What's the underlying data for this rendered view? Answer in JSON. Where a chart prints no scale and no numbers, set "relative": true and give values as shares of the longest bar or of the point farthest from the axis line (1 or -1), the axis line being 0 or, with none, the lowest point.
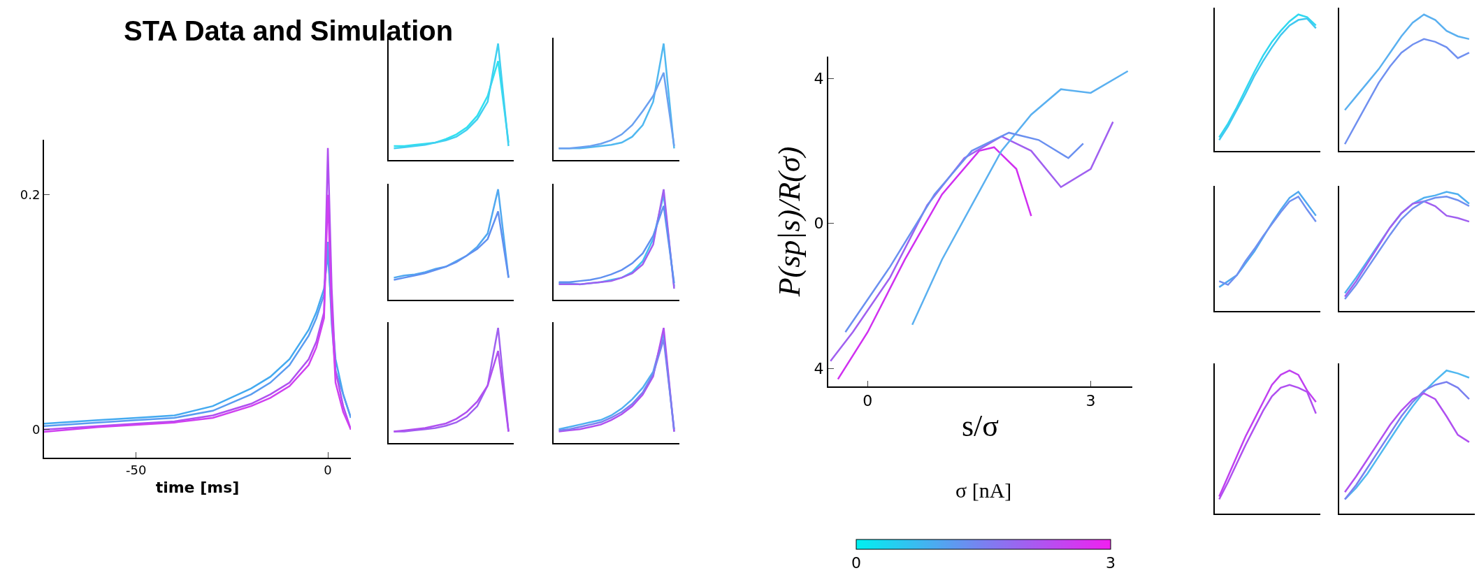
{
  "chart_data": [
    {
      "type": "line",
      "title": "STA Data and Simulation",
      "xlabel": "time [ms]",
      "x": [
        -74,
        -60,
        -50,
        -40,
        -30,
        -20,
        -15,
        -10,
        -5,
        -3,
        -1,
        0,
        1,
        2,
        4,
        6
      ],
      "xlim": [
        -74,
        6
      ],
      "xticks": [
        -50,
        0
      ],
      "ylim": [
        -0.024,
        0.247
      ],
      "yticks": [
        0,
        0.2
      ],
      "series": [
        {
          "color": "#44aaf0",
          "values": [
            0.005,
            0.008,
            0.01,
            0.012,
            0.02,
            0.035,
            0.045,
            0.06,
            0.085,
            0.1,
            0.12,
            0.15,
            0.1,
            0.06,
            0.03,
            0.01
          ]
        },
        {
          "color": "#5a9cf0",
          "values": [
            0.003,
            0.006,
            0.008,
            0.01,
            0.016,
            0.03,
            0.04,
            0.055,
            0.08,
            0.095,
            0.115,
            0.16,
            0.09,
            0.05,
            0.03,
            0.01
          ]
        },
        {
          "color": "#b050f0",
          "values": [
            0.0,
            0.003,
            0.005,
            0.007,
            0.012,
            0.022,
            0.03,
            0.04,
            0.06,
            0.075,
            0.1,
            0.24,
            0.12,
            0.05,
            0.02,
            0.0
          ]
        },
        {
          "color": "#d040f0",
          "values": [
            -0.002,
            0.002,
            0.004,
            0.006,
            0.01,
            0.02,
            0.027,
            0.037,
            0.055,
            0.07,
            0.095,
            0.2,
            0.1,
            0.04,
            0.015,
            0.0
          ]
        }
      ]
    },
    {
      "type": "line",
      "relative": true,
      "categories": [
        null,
        null,
        null,
        null,
        null,
        null,
        null,
        null,
        null,
        null,
        null,
        null
      ],
      "series": [
        {
          "color": "#30e0f0",
          "values": [
            0.12,
            0.12,
            0.13,
            0.14,
            0.15,
            0.18,
            0.22,
            0.28,
            0.38,
            0.55,
            0.85,
            0.15
          ]
        },
        {
          "color": "#40d0f0",
          "values": [
            0.1,
            0.11,
            0.12,
            0.13,
            0.15,
            0.17,
            0.2,
            0.26,
            0.35,
            0.5,
            1.0,
            0.12
          ]
        }
      ]
    },
    {
      "type": "line",
      "relative": true,
      "categories": [
        null,
        null,
        null,
        null,
        null,
        null,
        null,
        null,
        null,
        null,
        null,
        null
      ],
      "series": [
        {
          "color": "#50b8f0",
          "values": [
            0.1,
            0.1,
            0.1,
            0.11,
            0.12,
            0.13,
            0.15,
            0.2,
            0.3,
            0.5,
            1.0,
            0.1
          ]
        },
        {
          "color": "#6aa0f0",
          "values": [
            0.1,
            0.1,
            0.11,
            0.12,
            0.14,
            0.17,
            0.22,
            0.3,
            0.42,
            0.55,
            0.75,
            0.12
          ]
        }
      ]
    },
    {
      "type": "line",
      "relative": true,
      "categories": [
        null,
        null,
        null,
        null,
        null,
        null,
        null,
        null,
        null,
        null,
        null,
        null
      ],
      "series": [
        {
          "color": "#50a8f0",
          "values": [
            0.2,
            0.22,
            0.23,
            0.25,
            0.28,
            0.3,
            0.35,
            0.4,
            0.48,
            0.6,
            1.0,
            0.2
          ]
        },
        {
          "color": "#6090f0",
          "values": [
            0.18,
            0.2,
            0.22,
            0.24,
            0.27,
            0.3,
            0.34,
            0.4,
            0.46,
            0.55,
            0.8,
            0.2
          ]
        }
      ]
    },
    {
      "type": "line",
      "relative": true,
      "categories": [
        null,
        null,
        null,
        null,
        null,
        null,
        null,
        null,
        null,
        null,
        null,
        null
      ],
      "series": [
        {
          "color": "#40c0f0",
          "values": [
            0.15,
            0.15,
            0.14,
            0.15,
            0.16,
            0.18,
            0.2,
            0.25,
            0.35,
            0.55,
            0.95,
            0.12
          ]
        },
        {
          "color": "#a060f0",
          "values": [
            0.14,
            0.14,
            0.14,
            0.15,
            0.16,
            0.17,
            0.2,
            0.24,
            0.32,
            0.5,
            1.0,
            0.1
          ]
        },
        {
          "color": "#6090f0",
          "values": [
            0.16,
            0.16,
            0.17,
            0.18,
            0.2,
            0.23,
            0.27,
            0.33,
            0.42,
            0.58,
            0.85,
            0.15
          ]
        }
      ]
    },
    {
      "type": "line",
      "relative": true,
      "categories": [
        null,
        null,
        null,
        null,
        null,
        null,
        null,
        null,
        null,
        null,
        null,
        null
      ],
      "series": [
        {
          "color": "#a060f0",
          "values": [
            0.1,
            0.1,
            0.11,
            0.12,
            0.13,
            0.15,
            0.18,
            0.23,
            0.32,
            0.5,
            1.0,
            0.1
          ]
        },
        {
          "color": "#b050f0",
          "values": [
            0.1,
            0.11,
            0.12,
            0.13,
            0.15,
            0.17,
            0.21,
            0.27,
            0.36,
            0.5,
            0.8,
            0.1
          ]
        }
      ]
    },
    {
      "type": "line",
      "relative": true,
      "categories": [
        null,
        null,
        null,
        null,
        null,
        null,
        null,
        null,
        null,
        null,
        null,
        null
      ],
      "series": [
        {
          "color": "#50b0f0",
          "values": [
            0.12,
            0.14,
            0.16,
            0.18,
            0.2,
            0.24,
            0.3,
            0.38,
            0.48,
            0.62,
            0.95,
            0.1
          ]
        },
        {
          "color": "#b050f0",
          "values": [
            0.1,
            0.11,
            0.12,
            0.14,
            0.16,
            0.2,
            0.25,
            0.32,
            0.42,
            0.58,
            1.0,
            0.1
          ]
        },
        {
          "color": "#7a80f0",
          "values": [
            0.11,
            0.12,
            0.14,
            0.16,
            0.18,
            0.22,
            0.27,
            0.34,
            0.44,
            0.6,
            0.9,
            0.12
          ]
        }
      ]
    },
    {
      "type": "line",
      "xlabel": "s/σ",
      "ylabel": "P(sp|s)/R(σ)",
      "xlim": [
        -0.53,
        3.56
      ],
      "xticks": [
        0,
        3
      ],
      "ylim": [
        -4.5,
        4.6
      ],
      "yticks": [
        {
          "value": -4,
          "label": "4"
        },
        0,
        4
      ],
      "clabel": "σ [nA]",
      "clim": [
        0,
        3
      ],
      "cticks": [
        0,
        3
      ],
      "series": [
        {
          "color": "#d030f0",
          "x": [
            -0.4,
            0,
            0.5,
            1,
            1.5,
            1.7,
            2,
            2.2
          ],
          "values": [
            -4.3,
            -3,
            -1,
            0.8,
            2,
            2.1,
            1.5,
            0.2
          ]
        },
        {
          "color": "#a060f0",
          "x": [
            -0.5,
            -0.2,
            0.3,
            0.8,
            1.3,
            1.8,
            2.2,
            2.6,
            3,
            3.3
          ],
          "values": [
            -3.8,
            -3,
            -1.5,
            0.5,
            1.8,
            2.4,
            2,
            1,
            1.5,
            2.8
          ]
        },
        {
          "color": "#5ab0f0",
          "x": [
            0.6,
            1,
            1.4,
            1.8,
            2.2,
            2.6,
            3,
            3.5
          ],
          "values": [
            -2.8,
            -1,
            0.5,
            2,
            3,
            3.7,
            3.6,
            4.2
          ]
        },
        {
          "color": "#6a90f0",
          "x": [
            -0.3,
            0.3,
            0.9,
            1.4,
            1.9,
            2.3,
            2.7,
            2.9
          ],
          "values": [
            -3,
            -1.2,
            0.8,
            2,
            2.5,
            2.3,
            1.8,
            2.2
          ]
        }
      ]
    },
    {
      "type": "line",
      "relative": true,
      "categories": [
        null,
        null,
        null,
        null,
        null,
        null,
        null,
        null,
        null,
        null,
        null,
        null
      ],
      "series": [
        {
          "color": "#30d8f0",
          "values": [
            0.1,
            0.2,
            0.32,
            0.45,
            0.58,
            0.7,
            0.8,
            0.88,
            0.95,
            1.0,
            0.98,
            0.92
          ]
        },
        {
          "color": "#40c8f0",
          "values": [
            0.08,
            0.18,
            0.3,
            0.42,
            0.55,
            0.66,
            0.76,
            0.85,
            0.92,
            0.96,
            0.97,
            0.9
          ]
        }
      ]
    },
    {
      "type": "line",
      "relative": true,
      "categories": [
        null,
        null,
        null,
        null,
        null,
        null,
        null,
        null,
        null,
        null,
        null,
        null
      ],
      "series": [
        {
          "color": "#5ab0f0",
          "values": [
            0.3,
            0.4,
            0.5,
            0.6,
            0.72,
            0.84,
            0.94,
            1.0,
            0.96,
            0.88,
            0.84,
            0.82
          ]
        },
        {
          "color": "#7090f0",
          "values": [
            0.05,
            0.2,
            0.35,
            0.5,
            0.62,
            0.72,
            0.78,
            0.82,
            0.8,
            0.76,
            0.68,
            0.72
          ]
        }
      ]
    },
    {
      "type": "line",
      "relative": true,
      "categories": [
        null,
        null,
        null,
        null,
        null,
        null,
        null,
        null,
        null,
        null,
        null,
        null
      ],
      "series": [
        {
          "color": "#50a8f0",
          "values": [
            0.2,
            0.25,
            0.3,
            0.4,
            0.5,
            0.62,
            0.74,
            0.85,
            0.95,
            1.0,
            0.9,
            0.8
          ]
        },
        {
          "color": "#7090f0",
          "values": [
            0.25,
            0.22,
            0.3,
            0.42,
            0.52,
            0.63,
            0.73,
            0.83,
            0.92,
            0.96,
            0.85,
            0.75
          ]
        }
      ]
    },
    {
      "type": "line",
      "relative": true,
      "categories": [
        null,
        null,
        null,
        null,
        null,
        null,
        null,
        null,
        null,
        null,
        null,
        null
      ],
      "series": [
        {
          "color": "#50b0f0",
          "values": [
            0.15,
            0.28,
            0.42,
            0.56,
            0.7,
            0.82,
            0.9,
            0.95,
            0.97,
            1.0,
            0.98,
            0.9
          ]
        },
        {
          "color": "#a060f0",
          "values": [
            0.12,
            0.25,
            0.4,
            0.55,
            0.7,
            0.82,
            0.9,
            0.92,
            0.88,
            0.8,
            0.78,
            0.75
          ]
        },
        {
          "color": "#7090f0",
          "values": [
            0.1,
            0.22,
            0.36,
            0.5,
            0.64,
            0.77,
            0.86,
            0.92,
            0.95,
            0.96,
            0.93,
            0.88
          ]
        }
      ]
    },
    {
      "type": "line",
      "relative": true,
      "categories": [
        null,
        null,
        null,
        null,
        null,
        null,
        null,
        null,
        null,
        null,
        null,
        null
      ],
      "series": [
        {
          "color": "#b050f0",
          "values": [
            0.1,
            0.22,
            0.35,
            0.48,
            0.6,
            0.72,
            0.82,
            0.88,
            0.9,
            0.88,
            0.85,
            0.7
          ]
        },
        {
          "color": "#c040f0",
          "values": [
            0.12,
            0.26,
            0.4,
            0.54,
            0.66,
            0.78,
            0.9,
            0.97,
            1.0,
            0.97,
            0.86,
            0.78
          ]
        }
      ]
    },
    {
      "type": "line",
      "relative": true,
      "categories": [
        null,
        null,
        null,
        null,
        null,
        null,
        null,
        null,
        null,
        null,
        null,
        null
      ],
      "series": [
        {
          "color": "#50b8f0",
          "values": [
            0.1,
            0.18,
            0.28,
            0.4,
            0.52,
            0.64,
            0.75,
            0.85,
            0.93,
            1.0,
            0.98,
            0.95
          ]
        },
        {
          "color": "#b050f0",
          "values": [
            0.15,
            0.26,
            0.38,
            0.5,
            0.62,
            0.72,
            0.8,
            0.84,
            0.8,
            0.68,
            0.55,
            0.5
          ]
        },
        {
          "color": "#7a80f0",
          "values": [
            0.1,
            0.2,
            0.32,
            0.44,
            0.56,
            0.68,
            0.78,
            0.86,
            0.9,
            0.92,
            0.88,
            0.8
          ]
        }
      ]
    }
  ]
}
